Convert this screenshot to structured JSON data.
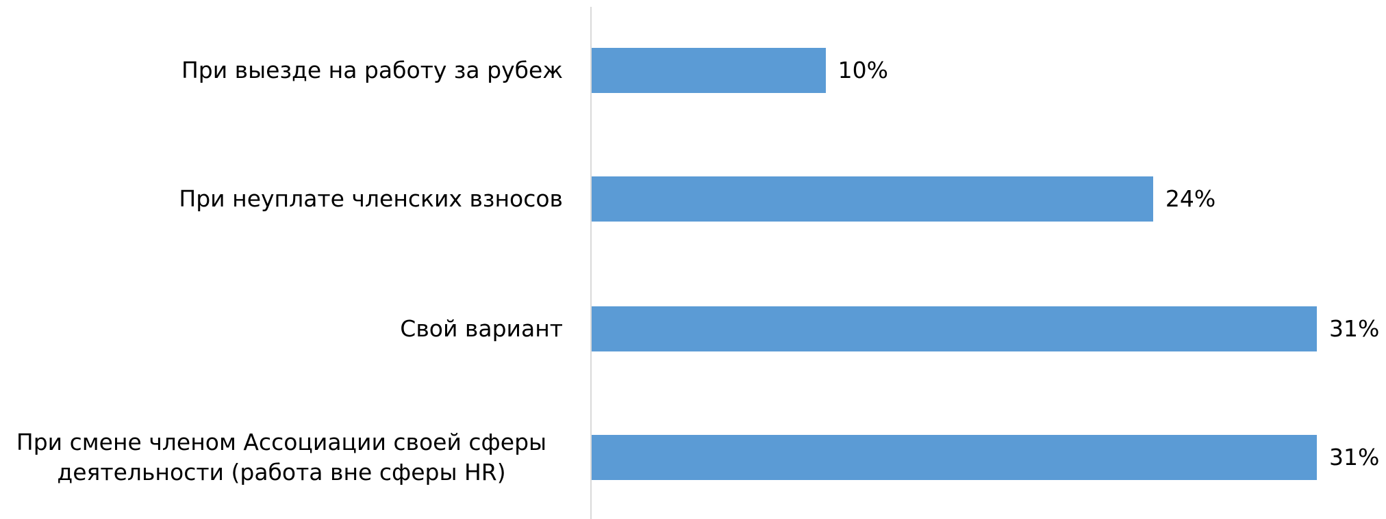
{
  "chart_data": {
    "type": "bar",
    "orientation": "horizontal",
    "categories": [
      "При выезде на работу за рубеж",
      "При неуплате членских взносов",
      "Свой вариант",
      "При смене членом Ассоциации своей сферы деятельности (работа вне сферы HR)"
    ],
    "values": [
      10,
      24,
      31,
      31
    ],
    "value_labels": [
      "10%",
      "24%",
      "31%",
      "31%"
    ],
    "color": "#5b9bd5"
  }
}
